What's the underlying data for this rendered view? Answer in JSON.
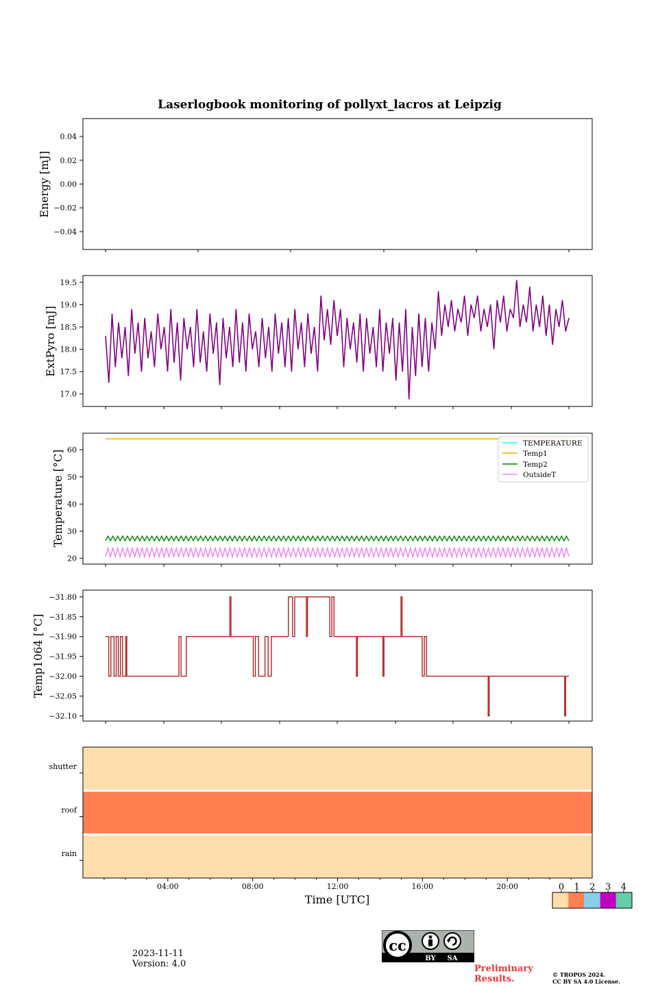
{
  "chart_data": [
    {
      "type": "line",
      "title": "Laserlogbook monitoring of pollyxt_lacros at Leipzig",
      "ylabel": "Energy [mJ]",
      "ylim": [
        -0.055,
        0.055
      ],
      "yticks": [
        "0.04",
        "0.02",
        "0.00",
        "−0.02",
        "−0.04"
      ],
      "ytick_values": [
        0.04,
        0.02,
        0.0,
        -0.02,
        -0.04
      ],
      "series": []
    },
    {
      "type": "line",
      "ylabel": "ExtPyro [mJ]",
      "ylim": [
        16.72,
        19.65
      ],
      "yticks": [
        "19.5",
        "19.0",
        "18.5",
        "18.0",
        "17.5",
        "17.0"
      ],
      "ytick_values": [
        19.5,
        19.0,
        18.5,
        18.0,
        17.5,
        17.0
      ],
      "series": [
        {
          "color": "#800080",
          "x_start_hour": 1.05,
          "x_end_hour": 22.85,
          "summary": "oscillates between about 17.3 and 18.9 until ~15:00, then rises to about 18.3-19.2 until end; min ~16.9 at ~13:50, max ~19.55 at ~20:10",
          "values": [
            18.3,
            17.25,
            18.8,
            17.6,
            18.6,
            17.8,
            18.5,
            17.4,
            18.9,
            17.9,
            18.6,
            17.5,
            18.7,
            17.8,
            18.4,
            17.6,
            18.8,
            18.0,
            18.5,
            17.5,
            18.9,
            17.7,
            18.6,
            17.3,
            18.7,
            18.0,
            18.5,
            17.6,
            18.9,
            17.7,
            18.4,
            17.5,
            18.8,
            17.9,
            18.6,
            17.2,
            18.7,
            17.8,
            18.5,
            17.6,
            18.9,
            17.7,
            18.6,
            17.5,
            18.8,
            18.0,
            18.4,
            17.6,
            18.7,
            17.8,
            18.5,
            17.5,
            18.8,
            17.9,
            18.6,
            17.6,
            18.7,
            17.5,
            18.9,
            18.0,
            18.6,
            17.6,
            18.8,
            17.9,
            18.5,
            17.5,
            19.2,
            18.2,
            18.9,
            18.1,
            19.1,
            18.3,
            18.9,
            17.6,
            18.7,
            18.0,
            18.6,
            17.7,
            18.8,
            17.5,
            18.7,
            17.9,
            18.5,
            17.6,
            18.9,
            17.5,
            18.6,
            17.9,
            18.7,
            17.3,
            18.6,
            17.5,
            18.9,
            16.88,
            18.5,
            17.4,
            18.8,
            17.6,
            18.7,
            17.5,
            18.6,
            18.0,
            19.3,
            18.3,
            19.0,
            18.5,
            19.1,
            18.4,
            18.9,
            18.6,
            19.2,
            18.3,
            19.0,
            18.7,
            19.2,
            18.4,
            18.9,
            18.5,
            19.0,
            18.0,
            19.1,
            18.6,
            19.2,
            18.4,
            18.9,
            18.7,
            19.55,
            18.5,
            19.0,
            18.6,
            19.4,
            18.4,
            19.0,
            18.5,
            19.2,
            18.3,
            19.0,
            18.1,
            18.9,
            18.5,
            19.1,
            18.4,
            18.7
          ]
        }
      ]
    },
    {
      "type": "line",
      "ylabel": "Temperature [°C]",
      "ylim": [
        17.9,
        66.1
      ],
      "yticks": [
        "60",
        "50",
        "40",
        "30",
        "20"
      ],
      "ytick_values": [
        60,
        50,
        40,
        30,
        20
      ],
      "legend": {
        "position": "top-right",
        "entries": [
          "TEMPERATURE",
          "Temp1",
          "Temp2",
          "OutsideT"
        ]
      },
      "series": [
        {
          "name": "TEMPERATURE",
          "color": "#00ffff",
          "values": []
        },
        {
          "name": "Temp1",
          "color": "#ffa500",
          "x_start_hour": 1.05,
          "x_end_hour": 22.85,
          "values": [
            64.0,
            64.0
          ]
        },
        {
          "name": "Temp2",
          "color": "#008000",
          "x_start_hour": 1.05,
          "x_end_hour": 22.85,
          "low": 26.5,
          "high": 28.2,
          "cycles": 95
        },
        {
          "name": "OutsideT",
          "color": "#ee82ee",
          "x_start_hour": 1.05,
          "x_end_hour": 22.85,
          "low": 20.6,
          "high": 23.8,
          "cycles": 95
        }
      ]
    },
    {
      "type": "line",
      "ylabel": "Temp1064 [°C]",
      "ylim": [
        -32.113,
        -31.783
      ],
      "yticks": [
        "−31.80",
        "−31.85",
        "−31.90",
        "−31.95",
        "−32.00",
        "−32.05",
        "−32.10"
      ],
      "ytick_values": [
        -31.8,
        -31.85,
        -31.9,
        -31.95,
        -32.0,
        -32.05,
        -32.1
      ],
      "series": [
        {
          "color": "#b22222",
          "points": [
            [
              1.05,
              -31.9
            ],
            [
              1.2,
              -31.9
            ],
            [
              1.2,
              -32.0
            ],
            [
              1.3,
              -32.0
            ],
            [
              1.3,
              -31.9
            ],
            [
              1.45,
              -31.9
            ],
            [
              1.45,
              -32.0
            ],
            [
              1.55,
              -32.0
            ],
            [
              1.55,
              -31.9
            ],
            [
              1.65,
              -31.9
            ],
            [
              1.65,
              -32.0
            ],
            [
              1.75,
              -32.0
            ],
            [
              1.75,
              -31.9
            ],
            [
              1.85,
              -31.9
            ],
            [
              1.85,
              -32.0
            ],
            [
              2.0,
              -32.0
            ],
            [
              2.0,
              -31.9
            ],
            [
              2.05,
              -31.9
            ],
            [
              2.05,
              -32.0
            ],
            [
              4.5,
              -32.0
            ],
            [
              4.5,
              -31.9
            ],
            [
              4.6,
              -31.9
            ],
            [
              4.6,
              -32.0
            ],
            [
              4.85,
              -32.0
            ],
            [
              4.85,
              -31.9
            ],
            [
              6.9,
              -31.9
            ],
            [
              6.9,
              -31.8
            ],
            [
              6.95,
              -31.8
            ],
            [
              6.95,
              -31.9
            ],
            [
              8.0,
              -31.9
            ],
            [
              8.0,
              -32.0
            ],
            [
              8.1,
              -32.0
            ],
            [
              8.1,
              -31.9
            ],
            [
              8.25,
              -31.9
            ],
            [
              8.25,
              -32.0
            ],
            [
              8.55,
              -32.0
            ],
            [
              8.55,
              -31.9
            ],
            [
              8.7,
              -31.9
            ],
            [
              8.7,
              -32.0
            ],
            [
              8.85,
              -32.0
            ],
            [
              8.85,
              -31.9
            ],
            [
              9.65,
              -31.9
            ],
            [
              9.65,
              -31.8
            ],
            [
              9.85,
              -31.8
            ],
            [
              9.85,
              -31.9
            ],
            [
              9.95,
              -31.9
            ],
            [
              9.95,
              -31.8
            ],
            [
              10.5,
              -31.8
            ],
            [
              10.5,
              -31.9
            ],
            [
              10.55,
              -31.9
            ],
            [
              10.55,
              -31.8
            ],
            [
              11.6,
              -31.8
            ],
            [
              11.6,
              -31.9
            ],
            [
              11.7,
              -31.9
            ],
            [
              11.7,
              -31.8
            ],
            [
              11.8,
              -31.8
            ],
            [
              11.8,
              -31.9
            ],
            [
              12.85,
              -31.9
            ],
            [
              12.85,
              -32.0
            ],
            [
              12.9,
              -32.0
            ],
            [
              12.9,
              -31.9
            ],
            [
              14.1,
              -31.9
            ],
            [
              14.1,
              -32.0
            ],
            [
              14.15,
              -32.0
            ],
            [
              14.15,
              -31.9
            ],
            [
              14.95,
              -31.9
            ],
            [
              14.95,
              -31.8
            ],
            [
              15.0,
              -31.8
            ],
            [
              15.0,
              -31.9
            ],
            [
              15.95,
              -31.9
            ],
            [
              15.95,
              -32.0
            ],
            [
              16.05,
              -32.0
            ],
            [
              16.05,
              -31.9
            ],
            [
              16.15,
              -31.9
            ],
            [
              16.15,
              -32.0
            ],
            [
              19.05,
              -32.0
            ],
            [
              19.05,
              -32.1
            ],
            [
              19.1,
              -32.1
            ],
            [
              19.1,
              -32.0
            ],
            [
              22.65,
              -32.0
            ],
            [
              22.65,
              -32.1
            ],
            [
              22.7,
              -32.1
            ],
            [
              22.7,
              -32.0
            ],
            [
              22.85,
              -32.0
            ]
          ]
        }
      ]
    },
    {
      "type": "heatmap",
      "rows": [
        "shutter",
        "roof",
        "rain"
      ],
      "row_values": [
        0,
        1,
        0
      ],
      "xlabel": "Time [UTC]",
      "xlim_hours": [
        0,
        24
      ],
      "xticks": [
        "04:00",
        "08:00",
        "12:00",
        "16:00",
        "20:00"
      ],
      "xtick_hours": [
        4,
        8,
        12,
        16,
        20
      ],
      "colorbar": {
        "ticks": [
          "0",
          "1",
          "2",
          "3",
          "4"
        ],
        "colors": [
          "#ffdead",
          "#ff7f50",
          "#87ceeb",
          "#c000c0",
          "#66cdaa"
        ]
      }
    }
  ],
  "footer": {
    "date": "2023-11-11",
    "version": "Version: 4.0",
    "preliminary_line1": "Preliminary",
    "preliminary_line2": "Results.",
    "copyright_line1": "© TROPOS 2024.",
    "copyright_line2": "CC BY SA 4.0 License.",
    "cc_label_by": "BY",
    "cc_label_sa": "SA",
    "cc_label_cc": "cc"
  }
}
